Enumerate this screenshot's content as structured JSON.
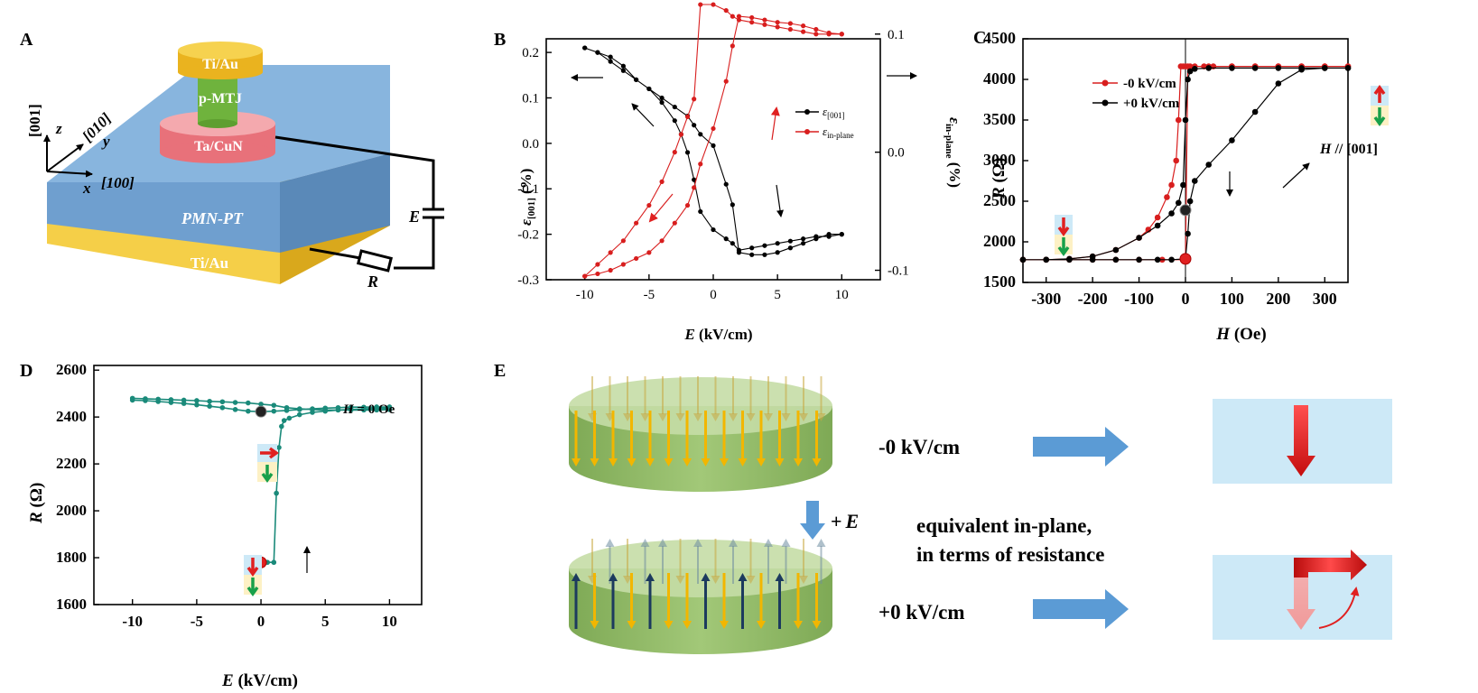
{
  "panels": {
    "A": {
      "label": "A",
      "layers": {
        "top_electrode": "Ti/Au",
        "mtj": "p-MTJ",
        "bottom_electrode": "Ta/CuN",
        "substrate": "PMN-PT",
        "back_electrode": "Ti/Au"
      },
      "axes": {
        "z_vec": "[001]",
        "z": "z",
        "y_vec": "[010]",
        "y": "y",
        "x_vec": "[100]",
        "x": "x"
      },
      "circuit": {
        "source": "E",
        "resistor": "R"
      },
      "colors": {
        "gold": "#f2c22e",
        "mtj_green": "#6fb33d",
        "pink": "#ef7f86",
        "substrate": "#7aaad6",
        "substrate_side": "#5d90c0"
      }
    },
    "B": {
      "label": "B",
      "xlabel_italic": "E",
      "xlabel_rest": " (kV/cm)",
      "ylabel_left_italic": "ε",
      "ylabel_left_sub": "[001]",
      "ylabel_left_rest": " (%)",
      "ylabel_right_italic": "ε",
      "ylabel_right_sub": "in-plane",
      "ylabel_right_rest": " (%)",
      "legend": [
        {
          "symbol": "ε",
          "sub": "[001]",
          "color": "#000000"
        },
        {
          "symbol": "ε",
          "sub": "in-plane",
          "color": "#d81e1e"
        }
      ]
    },
    "C": {
      "label": "C",
      "xlabel_italic": "H",
      "xlabel_rest": " (Oe)",
      "ylabel_italic": "R",
      "ylabel_rest": " (Ω)",
      "legend": [
        {
          "name": "-0 kV/cm",
          "color": "#d81e1e"
        },
        {
          "name": "+0 kV/cm",
          "color": "#000000"
        }
      ],
      "annotation_italic": "H",
      "annotation_rest": " // [001]"
    },
    "D": {
      "label": "D",
      "xlabel_italic": "E",
      "xlabel_rest": " (kV/cm)",
      "ylabel_italic": "R",
      "ylabel_rest": " (Ω)",
      "annotation_italic": "H",
      "annotation_rest": " = 0 Oe",
      "color": "#1a8a7a"
    },
    "E": {
      "label": "E",
      "state_top": "-0 kV/cm",
      "state_bottom": "+0 kV/cm",
      "field_plus": "+",
      "field_italic": "E",
      "text_line1": "equivalent in-plane,",
      "text_line2": "in terms of resistance",
      "colors": {
        "disk": "#8db661",
        "disk_top": "#c2dca4",
        "arrow_down": "#f2b600",
        "arrow_up": "#1c3a5e",
        "box": "#cde9f7",
        "blue_arrow": "#5b9bd5",
        "red": "#e02020"
      }
    }
  },
  "chart_data": [
    {
      "panel": "B",
      "type": "line",
      "xlabel": "E (kV/cm)",
      "ylabel": "ε[001] (%)",
      "ylabel_right": "εin-plane (%)",
      "xlim": [
        -13,
        13
      ],
      "ylim": [
        -0.3,
        0.23
      ],
      "ylim_right": [
        -0.108,
        0.096
      ],
      "xticks": [
        -10,
        -5,
        0,
        5,
        10
      ],
      "yticks": [
        -0.3,
        -0.2,
        -0.1,
        0.0,
        0.1,
        0.2
      ],
      "yticks_right": [
        -0.1,
        0.0,
        0.1
      ],
      "series": [
        {
          "name": "ε[001]",
          "axis": "left",
          "color": "#000000",
          "x": [
            -10,
            -9,
            -8,
            -7,
            -6,
            -5,
            -4,
            -3,
            -2.5,
            -2,
            -1.5,
            -1,
            0,
            1,
            1.5,
            2,
            3,
            4,
            5,
            6,
            7,
            8,
            9,
            10,
            10,
            9,
            8,
            7,
            6,
            5,
            4,
            3,
            2,
            1.5,
            1,
            0,
            -1,
            -1.5,
            -2,
            -3,
            -4,
            -5,
            -6,
            -7,
            -8,
            -9,
            -10
          ],
          "y": [
            0.21,
            0.2,
            0.19,
            0.17,
            0.14,
            0.12,
            0.09,
            0.05,
            0.02,
            -0.02,
            -0.08,
            -0.15,
            -0.19,
            -0.21,
            -0.22,
            -0.235,
            -0.23,
            -0.225,
            -0.22,
            -0.215,
            -0.21,
            -0.205,
            -0.205,
            -0.2,
            -0.2,
            -0.2,
            -0.21,
            -0.22,
            -0.23,
            -0.24,
            -0.245,
            -0.245,
            -0.24,
            -0.135,
            -0.09,
            -0.005,
            0.02,
            0.04,
            0.06,
            0.08,
            0.1,
            0.12,
            0.14,
            0.16,
            0.18,
            0.2,
            0.21
          ]
        },
        {
          "name": "εin-plane",
          "axis": "right",
          "color": "#d81e1e",
          "x": [
            -10,
            -9,
            -8,
            -7,
            -6,
            -5,
            -4,
            -3,
            -2.5,
            -2,
            -1.5,
            -1,
            0,
            1,
            1.5,
            2,
            3,
            4,
            5,
            6,
            7,
            8,
            9,
            10,
            10,
            9,
            8,
            7,
            6,
            5,
            4,
            3,
            2,
            1.5,
            1,
            0,
            -1,
            -1.5,
            -2,
            -3,
            -4,
            -5,
            -6,
            -7,
            -8,
            -9,
            -10
          ],
          "y": [
            -0.105,
            -0.095,
            -0.085,
            -0.075,
            -0.06,
            -0.045,
            -0.025,
            0.0,
            0.015,
            0.03,
            0.045,
            0.125,
            0.125,
            0.12,
            0.115,
            0.112,
            0.11,
            0.108,
            0.106,
            0.104,
            0.102,
            0.1,
            0.1,
            0.1,
            0.1,
            0.101,
            0.104,
            0.107,
            0.109,
            0.11,
            0.112,
            0.114,
            0.115,
            0.09,
            0.06,
            0.02,
            -0.01,
            -0.03,
            -0.045,
            -0.06,
            -0.075,
            -0.085,
            -0.09,
            -0.095,
            -0.1,
            -0.103,
            -0.105
          ]
        }
      ]
    },
    {
      "panel": "C",
      "type": "line",
      "xlabel": "H (Oe)",
      "ylabel": "R (Ω)",
      "xlim": [
        -350,
        350
      ],
      "ylim": [
        1500,
        4500
      ],
      "xticks": [
        -300,
        -200,
        -100,
        0,
        100,
        200,
        300
      ],
      "yticks": [
        1500,
        2000,
        2500,
        3000,
        3500,
        4000,
        4500
      ],
      "series": [
        {
          "name": "-0 kV/cm",
          "color": "#d81e1e",
          "x": [
            -350,
            -300,
            -250,
            -200,
            -150,
            -100,
            -80,
            -60,
            -40,
            -30,
            -20,
            -15,
            -10,
            -5,
            0,
            50,
            100,
            150,
            200,
            250,
            300,
            350,
            350,
            300,
            250,
            200,
            150,
            100,
            60,
            40,
            20,
            10,
            5,
            0,
            -50,
            -100,
            -150,
            -200,
            -250,
            -300,
            -350
          ],
          "y": [
            1780,
            1780,
            1790,
            1820,
            1900,
            2050,
            2150,
            2300,
            2550,
            2700,
            3000,
            3500,
            4160,
            4160,
            4160,
            4160,
            4160,
            4160,
            4160,
            4160,
            4160,
            4160,
            4160,
            4160,
            4160,
            4160,
            4160,
            4160,
            4160,
            4160,
            4160,
            4160,
            4160,
            1780,
            1780,
            1780,
            1780,
            1780,
            1780,
            1780,
            1780
          ]
        },
        {
          "name": "+0 kV/cm",
          "color": "#000000",
          "x": [
            -350,
            -300,
            -250,
            -200,
            -150,
            -100,
            -60,
            -30,
            -15,
            -5,
            0,
            5,
            10,
            20,
            50,
            100,
            150,
            200,
            250,
            300,
            350,
            350,
            300,
            250,
            200,
            150,
            100,
            50,
            20,
            10,
            5,
            0,
            -30,
            -60,
            -100,
            -150,
            -200,
            -250,
            -300,
            -350
          ],
          "y": [
            1780,
            1780,
            1790,
            1820,
            1900,
            2050,
            2200,
            2350,
            2480,
            2700,
            3500,
            4000,
            4100,
            4130,
            4140,
            4140,
            4140,
            4140,
            4140,
            4140,
            4140,
            4140,
            4140,
            4120,
            3950,
            3600,
            3250,
            2950,
            2750,
            2500,
            2100,
            1790,
            1780,
            1780,
            1780,
            1780,
            1780,
            1780,
            1780,
            1780
          ]
        }
      ]
    },
    {
      "panel": "D",
      "type": "line",
      "xlabel": "E (kV/cm)",
      "ylabel": "R (Ω)",
      "xlim": [
        -13,
        12.5
      ],
      "ylim": [
        1600,
        2620
      ],
      "xticks": [
        -10,
        -5,
        0,
        5,
        10
      ],
      "yticks": [
        1600,
        1800,
        2000,
        2200,
        2400,
        2600
      ],
      "series": [
        {
          "name": "R(E)",
          "color": "#1a8a7a",
          "x": [
            0,
            0.5,
            1,
            1.2,
            1.4,
            1.6,
            1.8,
            2.2,
            3,
            4,
            5,
            6,
            7,
            8,
            9,
            10,
            10,
            9,
            8,
            7,
            6,
            5,
            4,
            3,
            2,
            1,
            0,
            -1,
            -2,
            -3,
            -4,
            -5,
            -6,
            -7,
            -8,
            -9,
            -10,
            -10,
            -9,
            -8,
            -7,
            -6,
            -5,
            -4,
            -3,
            -2,
            -1,
            0,
            1,
            2,
            3,
            4,
            5,
            6,
            7,
            8,
            9,
            10
          ],
          "y": [
            1780,
            1780,
            1780,
            2075,
            2270,
            2360,
            2385,
            2395,
            2410,
            2420,
            2425,
            2430,
            2432,
            2435,
            2437,
            2438,
            2432,
            2430,
            2430,
            2430,
            2430,
            2430,
            2432,
            2435,
            2440,
            2450,
            2455,
            2460,
            2462,
            2465,
            2467,
            2470,
            2472,
            2474,
            2476,
            2478,
            2480,
            2472,
            2470,
            2466,
            2462,
            2458,
            2452,
            2446,
            2440,
            2432,
            2425,
            2423,
            2425,
            2428,
            2432,
            2435,
            2438,
            2440,
            2442,
            2442,
            2443,
            2443
          ]
        }
      ]
    }
  ]
}
